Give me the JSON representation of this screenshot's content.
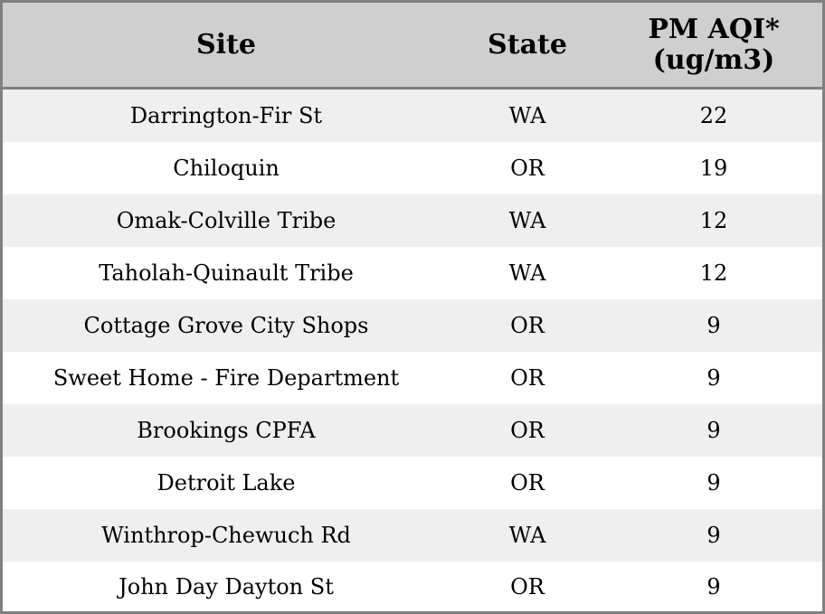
{
  "chart_data": {
    "type": "table",
    "columns": [
      "Site",
      "State",
      "PM AQI* (ug/m3)"
    ],
    "header_lines": {
      "site": "Site",
      "state": "State",
      "pm_line1": "PM AQI*",
      "pm_line2": "(ug/m3)"
    },
    "rows": [
      {
        "site": "Darrington-Fir St",
        "state": "WA",
        "pm": "22"
      },
      {
        "site": "Chiloquin",
        "state": "OR",
        "pm": "19"
      },
      {
        "site": "Omak-Colville Tribe",
        "state": "WA",
        "pm": "12"
      },
      {
        "site": "Taholah-Quinault Tribe",
        "state": "WA",
        "pm": "12"
      },
      {
        "site": "Cottage Grove City Shops",
        "state": "OR",
        "pm": "9"
      },
      {
        "site": "Sweet Home - Fire Department",
        "state": "OR",
        "pm": "9"
      },
      {
        "site": "Brookings CPFA",
        "state": "OR",
        "pm": "9"
      },
      {
        "site": "Detroit Lake",
        "state": "OR",
        "pm": "9"
      },
      {
        "site": "Winthrop-Chewuch Rd",
        "state": "WA",
        "pm": "9"
      },
      {
        "site": "John Day Dayton St",
        "state": "OR",
        "pm": "9"
      }
    ],
    "colors": {
      "header_bg": "#cfcfcf",
      "stripe_bg": "#efefef",
      "row_bg": "#ffffff",
      "border": "#808080"
    }
  }
}
